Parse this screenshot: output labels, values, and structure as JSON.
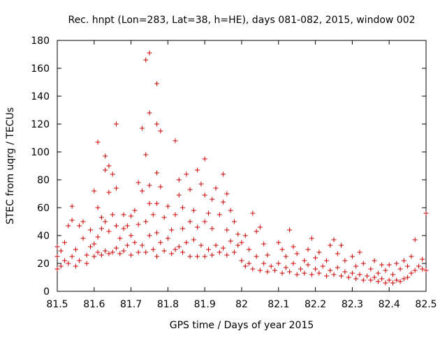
{
  "chart_data": {
    "type": "scatter",
    "title": "Rec. hnpt (Lon=283, Lat=38, h=HE), days 081-082, 2015, window 002",
    "xlabel": "GPS time / Days of year 2015",
    "ylabel": "STEC from uqrg / TECUs",
    "xlim": [
      81.5,
      82.5
    ],
    "ylim": [
      0,
      180
    ],
    "x_ticks": [
      "81.5",
      "81.6",
      "81.7",
      "81.8",
      "81.9",
      "82",
      "82.1",
      "82.2",
      "82.3",
      "82.4",
      "82.5"
    ],
    "y_ticks": [
      "0",
      "20",
      "40",
      "60",
      "80",
      "100",
      "120",
      "140",
      "160",
      "180"
    ],
    "grid": false,
    "marker": "plus",
    "colors": {
      "points": "#cc0000",
      "axis": "#000000"
    },
    "series": [
      {
        "points": [
          [
            81.5,
            16
          ],
          [
            81.5,
            25
          ],
          [
            81.5,
            32
          ],
          [
            81.51,
            18
          ],
          [
            81.51,
            29
          ],
          [
            81.52,
            22
          ],
          [
            81.52,
            35
          ],
          [
            81.53,
            20
          ],
          [
            81.53,
            47
          ],
          [
            81.54,
            25
          ],
          [
            81.54,
            51
          ],
          [
            81.54,
            61
          ],
          [
            81.55,
            18
          ],
          [
            81.55,
            30
          ],
          [
            81.56,
            22
          ],
          [
            81.56,
            47
          ],
          [
            81.57,
            38
          ],
          [
            81.57,
            50
          ],
          [
            81.58,
            20
          ],
          [
            81.58,
            26
          ],
          [
            81.59,
            32
          ],
          [
            81.59,
            44
          ],
          [
            81.6,
            25
          ],
          [
            81.6,
            34
          ],
          [
            81.6,
            72
          ],
          [
            81.61,
            28
          ],
          [
            81.61,
            39
          ],
          [
            81.61,
            60
          ],
          [
            81.61,
            107
          ],
          [
            81.62,
            26
          ],
          [
            81.62,
            45
          ],
          [
            81.62,
            53
          ],
          [
            81.63,
            29
          ],
          [
            81.63,
            50
          ],
          [
            81.63,
            87
          ],
          [
            81.63,
            97
          ],
          [
            81.64,
            27
          ],
          [
            81.64,
            43
          ],
          [
            81.64,
            71
          ],
          [
            81.64,
            90
          ],
          [
            81.65,
            28
          ],
          [
            81.65,
            55
          ],
          [
            81.65,
            84
          ],
          [
            81.66,
            31
          ],
          [
            81.66,
            47
          ],
          [
            81.66,
            74
          ],
          [
            81.66,
            120
          ],
          [
            81.67,
            27
          ],
          [
            81.67,
            38
          ],
          [
            81.68,
            29
          ],
          [
            81.68,
            45
          ],
          [
            81.68,
            55
          ],
          [
            81.69,
            33
          ],
          [
            81.69,
            47
          ],
          [
            81.7,
            26
          ],
          [
            81.7,
            40
          ],
          [
            81.7,
            54
          ],
          [
            81.71,
            35
          ],
          [
            81.71,
            58
          ],
          [
            81.72,
            28
          ],
          [
            81.72,
            48
          ],
          [
            81.72,
            78
          ],
          [
            81.73,
            33
          ],
          [
            81.73,
            72
          ],
          [
            81.73,
            117
          ],
          [
            81.74,
            28
          ],
          [
            81.74,
            50
          ],
          [
            81.74,
            98
          ],
          [
            81.74,
            166
          ],
          [
            81.75,
            40
          ],
          [
            81.75,
            63
          ],
          [
            81.75,
            76
          ],
          [
            81.75,
            128
          ],
          [
            81.75,
            171
          ],
          [
            81.76,
            30
          ],
          [
            81.76,
            55
          ],
          [
            81.77,
            25
          ],
          [
            81.77,
            42
          ],
          [
            81.77,
            63
          ],
          [
            81.77,
            85
          ],
          [
            81.77,
            120
          ],
          [
            81.77,
            149
          ],
          [
            81.78,
            35
          ],
          [
            81.78,
            75
          ],
          [
            81.78,
            115
          ],
          [
            81.79,
            29
          ],
          [
            81.79,
            53
          ],
          [
            81.8,
            38
          ],
          [
            81.8,
            61
          ],
          [
            81.81,
            27
          ],
          [
            81.81,
            44
          ],
          [
            81.82,
            30
          ],
          [
            81.82,
            55
          ],
          [
            81.82,
            108
          ],
          [
            81.83,
            32
          ],
          [
            81.83,
            69
          ],
          [
            81.83,
            80
          ],
          [
            81.84,
            28
          ],
          [
            81.84,
            45
          ],
          [
            81.84,
            60
          ],
          [
            81.85,
            35
          ],
          [
            81.85,
            84
          ],
          [
            81.86,
            25
          ],
          [
            81.86,
            50
          ],
          [
            81.86,
            73
          ],
          [
            81.87,
            37
          ],
          [
            81.87,
            58
          ],
          [
            81.88,
            25
          ],
          [
            81.88,
            46
          ],
          [
            81.88,
            87
          ],
          [
            81.89,
            33
          ],
          [
            81.89,
            77
          ],
          [
            81.9,
            25
          ],
          [
            81.9,
            50
          ],
          [
            81.9,
            69
          ],
          [
            81.9,
            95
          ],
          [
            81.91,
            30
          ],
          [
            81.91,
            56
          ],
          [
            81.92,
            26
          ],
          [
            81.92,
            45
          ],
          [
            81.92,
            66
          ],
          [
            81.93,
            33
          ],
          [
            81.93,
            74
          ],
          [
            81.94,
            28
          ],
          [
            81.94,
            55
          ],
          [
            81.95,
            31
          ],
          [
            81.95,
            64
          ],
          [
            81.95,
            84
          ],
          [
            81.96,
            26
          ],
          [
            81.96,
            44
          ],
          [
            81.96,
            70
          ],
          [
            81.97,
            36
          ],
          [
            81.97,
            58
          ],
          [
            81.98,
            28
          ],
          [
            81.98,
            50
          ],
          [
            81.99,
            33
          ],
          [
            81.99,
            41
          ],
          [
            82.0,
            22
          ],
          [
            82.0,
            35
          ],
          [
            82.01,
            18
          ],
          [
            82.01,
            40
          ],
          [
            82.02,
            20
          ],
          [
            82.02,
            30
          ],
          [
            82.03,
            16
          ],
          [
            82.03,
            56
          ],
          [
            82.04,
            25
          ],
          [
            82.04,
            43
          ],
          [
            82.05,
            15
          ],
          [
            82.05,
            46
          ],
          [
            82.06,
            20
          ],
          [
            82.06,
            34
          ],
          [
            82.07,
            14
          ],
          [
            82.07,
            26
          ],
          [
            82.08,
            18
          ],
          [
            82.09,
            15
          ],
          [
            82.1,
            20
          ],
          [
            82.1,
            35
          ],
          [
            82.11,
            13
          ],
          [
            82.11,
            30
          ],
          [
            82.12,
            17
          ],
          [
            82.12,
            25
          ],
          [
            82.13,
            14
          ],
          [
            82.13,
            44
          ],
          [
            82.14,
            20
          ],
          [
            82.14,
            32
          ],
          [
            82.15,
            12
          ],
          [
            82.15,
            27
          ],
          [
            82.16,
            16
          ],
          [
            82.17,
            13
          ],
          [
            82.17,
            22
          ],
          [
            82.18,
            19
          ],
          [
            82.18,
            30
          ],
          [
            82.19,
            12
          ],
          [
            82.19,
            38
          ],
          [
            82.2,
            16
          ],
          [
            82.2,
            24
          ],
          [
            82.21,
            13
          ],
          [
            82.21,
            28
          ],
          [
            82.22,
            18
          ],
          [
            82.23,
            11
          ],
          [
            82.23,
            22
          ],
          [
            82.24,
            15
          ],
          [
            82.24,
            33
          ],
          [
            82.25,
            12
          ],
          [
            82.25,
            37
          ],
          [
            82.26,
            17
          ],
          [
            82.26,
            27
          ],
          [
            82.27,
            11
          ],
          [
            82.27,
            33
          ],
          [
            82.28,
            14
          ],
          [
            82.28,
            22
          ],
          [
            82.29,
            10
          ],
          [
            82.3,
            13
          ],
          [
            82.3,
            25
          ],
          [
            82.31,
            9
          ],
          [
            82.31,
            18
          ],
          [
            82.32,
            12
          ],
          [
            82.32,
            28
          ],
          [
            82.33,
            8
          ],
          [
            82.33,
            20
          ],
          [
            82.34,
            11
          ],
          [
            82.35,
            8
          ],
          [
            82.35,
            16
          ],
          [
            82.36,
            10
          ],
          [
            82.36,
            22
          ],
          [
            82.37,
            7
          ],
          [
            82.37,
            13
          ],
          [
            82.38,
            9
          ],
          [
            82.38,
            19
          ],
          [
            82.39,
            6
          ],
          [
            82.39,
            15
          ],
          [
            82.4,
            8
          ],
          [
            82.4,
            19
          ],
          [
            82.41,
            6
          ],
          [
            82.41,
            12
          ],
          [
            82.42,
            8
          ],
          [
            82.42,
            20
          ],
          [
            82.43,
            7
          ],
          [
            82.43,
            16
          ],
          [
            82.44,
            9
          ],
          [
            82.44,
            22
          ],
          [
            82.45,
            10
          ],
          [
            82.45,
            18
          ],
          [
            82.46,
            13
          ],
          [
            82.46,
            25
          ],
          [
            82.47,
            15
          ],
          [
            82.47,
            37
          ],
          [
            82.48,
            18
          ],
          [
            82.49,
            16
          ],
          [
            82.49,
            23
          ],
          [
            82.5,
            15
          ],
          [
            82.5,
            56
          ]
        ]
      }
    ]
  }
}
